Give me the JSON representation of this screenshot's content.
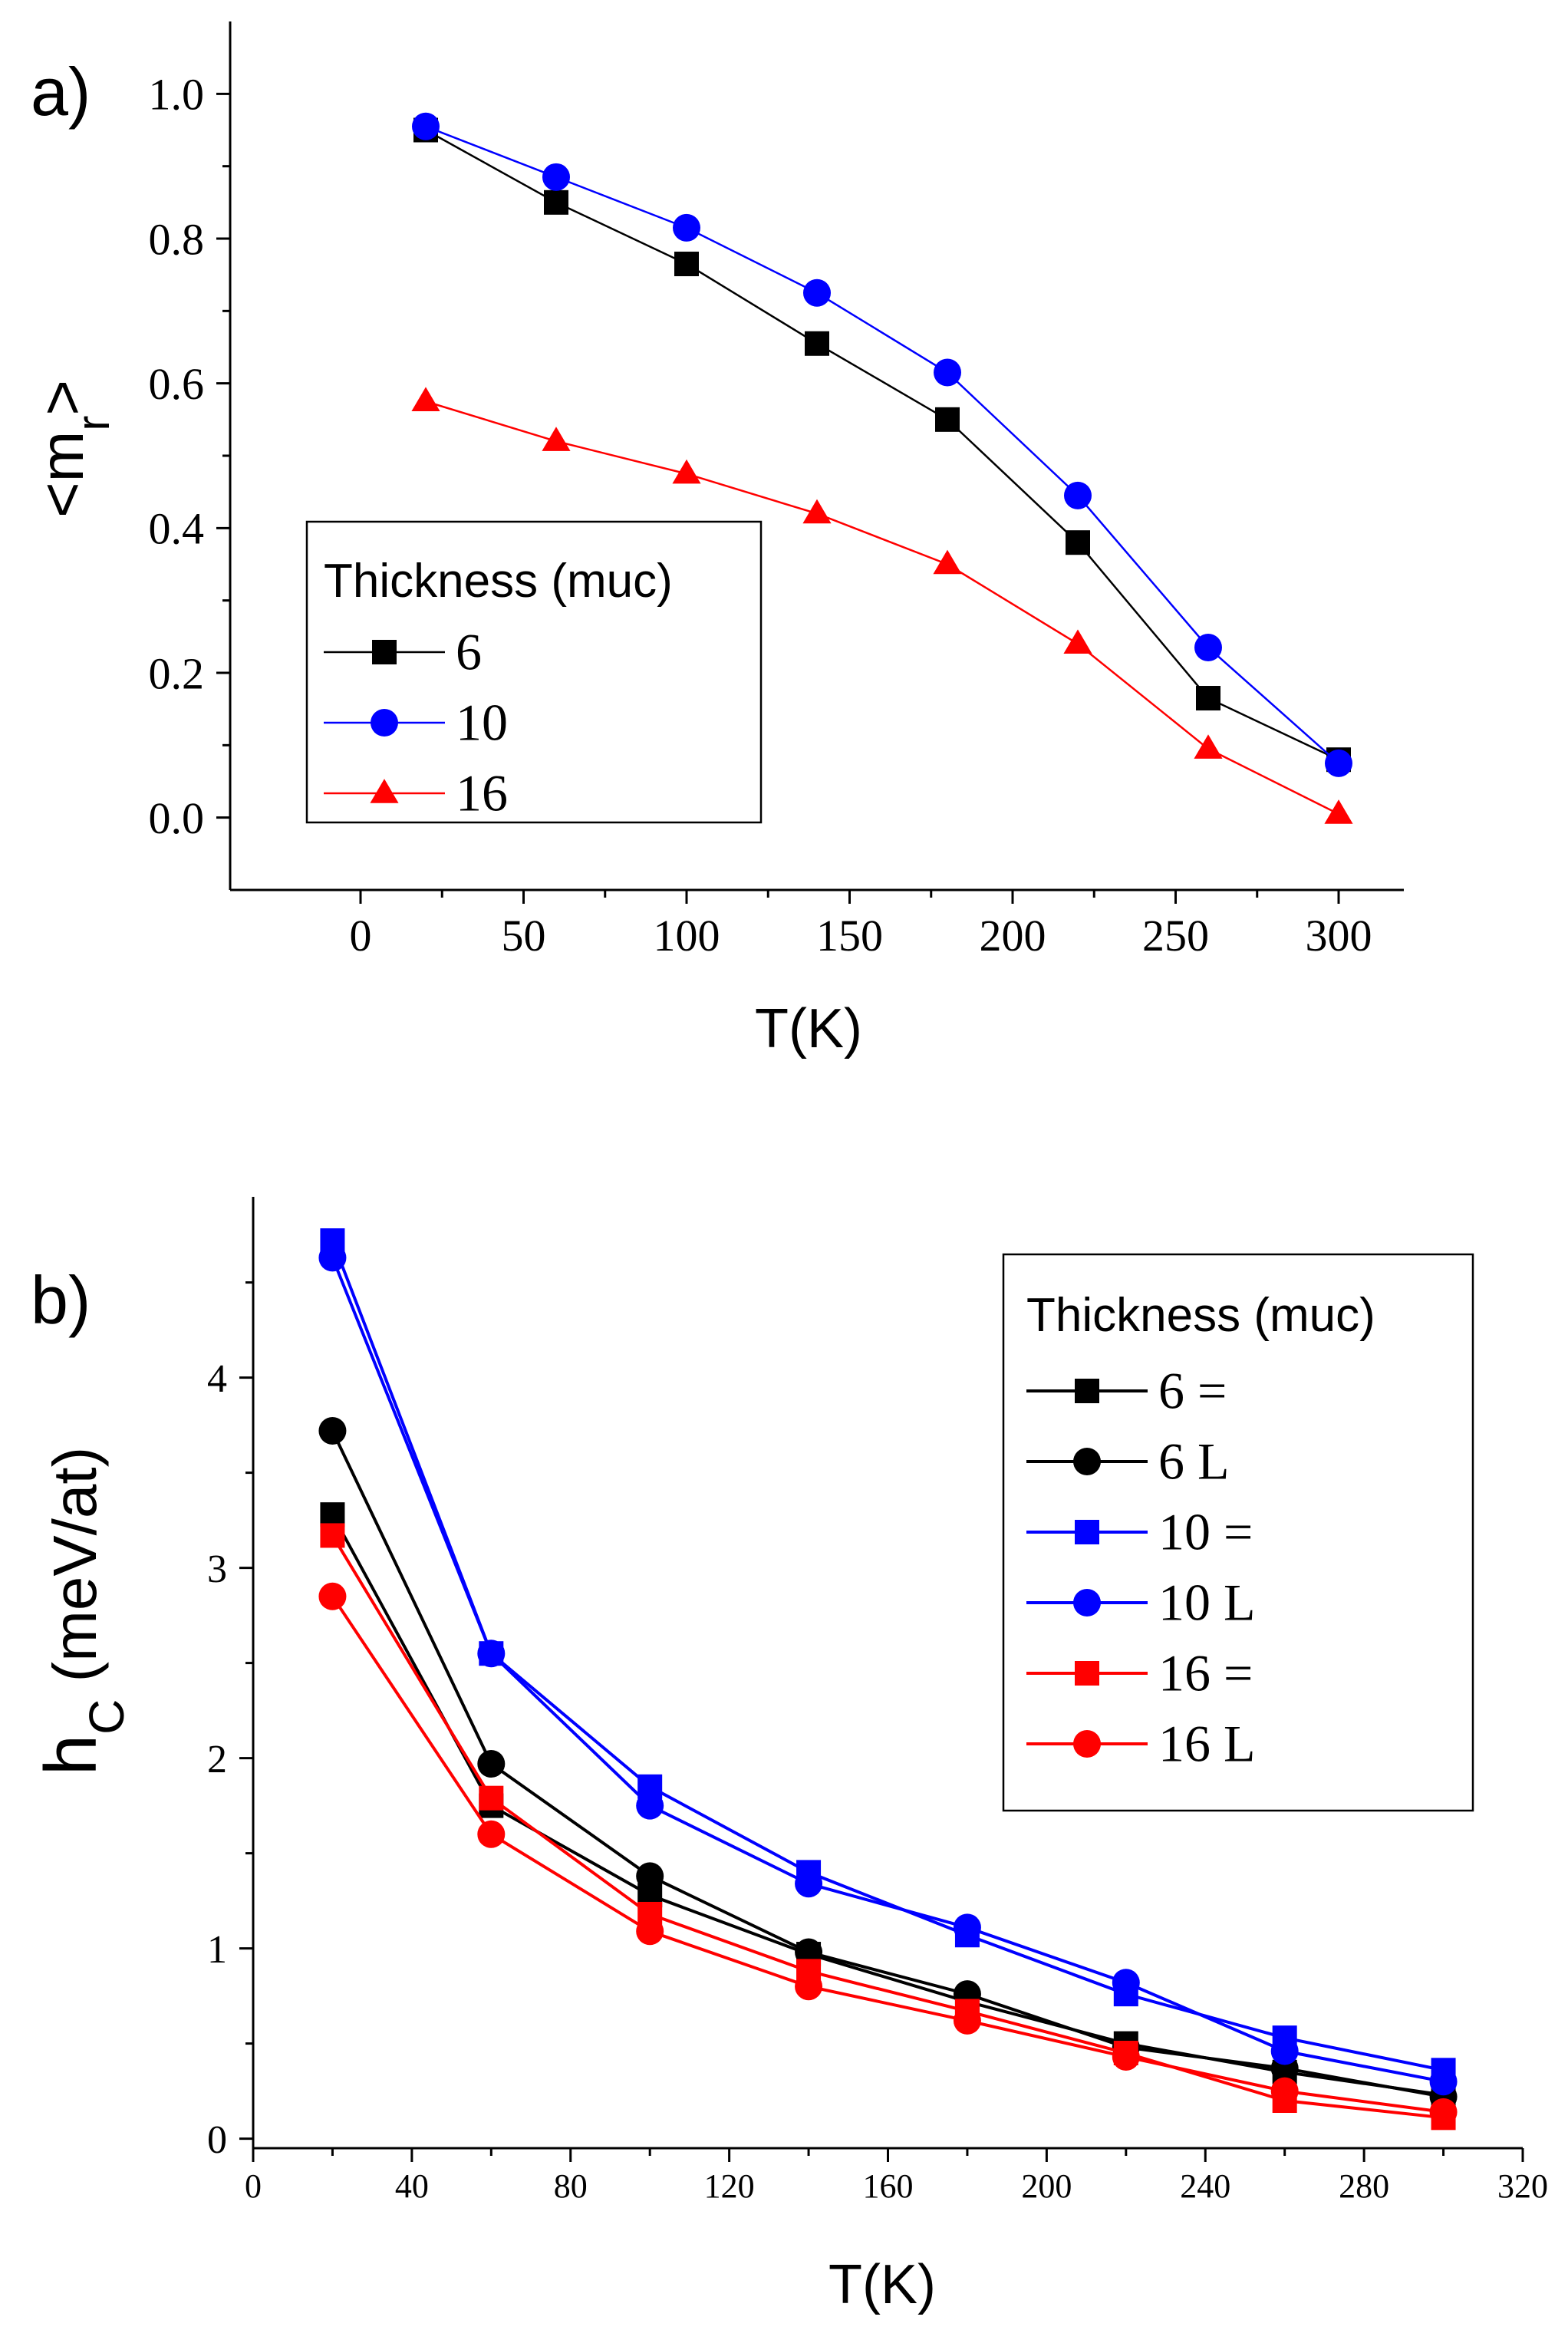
{
  "chart_data": [
    {
      "type": "line",
      "panel_label": "a)",
      "xlabel": "T(K)",
      "ylabel": "<m",
      "ylabel_sub": "r",
      "ylabel_end": ">",
      "xlim": [
        -40,
        320
      ],
      "ylim": [
        -0.1,
        1.1
      ],
      "xticks": [
        0,
        50,
        100,
        150,
        200,
        250,
        300
      ],
      "yticks": [
        0.0,
        0.2,
        0.4,
        0.6,
        0.8,
        1.0
      ],
      "xtick_labels": [
        "0",
        "50",
        "100",
        "150",
        "200",
        "250",
        "300"
      ],
      "ytick_labels": [
        "0.0",
        "0.2",
        "0.4",
        "0.6",
        "0.8",
        "1.0"
      ],
      "legend_title": "Thickness (muc)",
      "legend_position": "lower-left",
      "x": [
        20,
        60,
        100,
        140,
        180,
        220,
        260,
        300
      ],
      "series": [
        {
          "name": "6",
          "marker": "square",
          "color": "#000000",
          "values": [
            0.95,
            0.85,
            0.765,
            0.655,
            0.55,
            0.38,
            0.165,
            0.08
          ]
        },
        {
          "name": "10",
          "marker": "circle",
          "color": "#0000ff",
          "values": [
            0.955,
            0.885,
            0.815,
            0.725,
            0.615,
            0.445,
            0.235,
            0.075
          ]
        },
        {
          "name": "16",
          "marker": "triangle",
          "color": "#ff0000",
          "values": [
            0.575,
            0.52,
            0.475,
            0.42,
            0.35,
            0.24,
            0.095,
            0.005
          ]
        }
      ]
    },
    {
      "type": "line",
      "panel_label": "b)",
      "xlabel": "T(K)",
      "ylabel": "h",
      "ylabel_sub": "C",
      "ylabel_end": " (meV/at)",
      "xlim": [
        0,
        320
      ],
      "ylim": [
        -0.05,
        4.95
      ],
      "xticks": [
        0,
        40,
        80,
        120,
        160,
        200,
        240,
        280,
        320
      ],
      "yticks": [
        0,
        1,
        2,
        3,
        4
      ],
      "xtick_labels": [
        "0",
        "40",
        "80",
        "120",
        "160",
        "200",
        "240",
        "280",
        "320"
      ],
      "ytick_labels": [
        "0",
        "1",
        "2",
        "3",
        "4"
      ],
      "legend_title": "Thickness (muc)",
      "legend_position": "upper-right",
      "x": [
        20,
        60,
        100,
        140,
        180,
        220,
        260,
        300
      ],
      "series": [
        {
          "name": "6 =",
          "marker": "square",
          "color": "#000000",
          "values": [
            3.28,
            1.75,
            1.28,
            0.97,
            0.72,
            0.5,
            0.35,
            0.23
          ]
        },
        {
          "name": "6 L",
          "marker": "circle",
          "color": "#000000",
          "values": [
            3.72,
            1.97,
            1.38,
            0.98,
            0.76,
            0.48,
            0.37,
            0.22
          ]
        },
        {
          "name": "10 =",
          "marker": "square",
          "color": "#0000ff",
          "values": [
            4.72,
            2.55,
            1.85,
            1.4,
            1.07,
            0.76,
            0.53,
            0.36
          ]
        },
        {
          "name": "10 L",
          "marker": "circle",
          "color": "#0000ff",
          "values": [
            4.63,
            2.55,
            1.75,
            1.34,
            1.11,
            0.82,
            0.46,
            0.3
          ]
        },
        {
          "name": "16 =",
          "marker": "square",
          "color": "#ff0000",
          "values": [
            3.17,
            1.79,
            1.18,
            0.88,
            0.67,
            0.45,
            0.2,
            0.11
          ]
        },
        {
          "name": "16 L",
          "marker": "circle",
          "color": "#ff0000",
          "values": [
            2.85,
            1.6,
            1.09,
            0.8,
            0.62,
            0.43,
            0.25,
            0.14
          ]
        }
      ]
    }
  ]
}
